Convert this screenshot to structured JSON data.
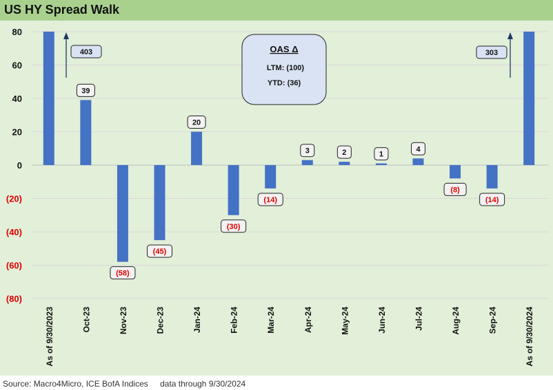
{
  "title": "US HY Spread Walk",
  "source": "Source: Macro4Micro, ICE BofA Indices",
  "data_through": "data through 9/30/2024",
  "colors": {
    "bar": "#4472c4",
    "negative_label": "#e00000",
    "title_bg": "#a9d18e",
    "plot_bg": "#e2efd9",
    "callout_bg": "#dae3f3"
  },
  "callout": {
    "title": "OAS Δ",
    "ltm": "LTM: (100)",
    "ytd": "YTD: (36)"
  },
  "chart_data": {
    "type": "bar",
    "title": "US HY Spread Walk",
    "categories": [
      "As of 9/30/2023",
      "Oct-23",
      "Nov-23",
      "Dec-23",
      "Jan-24",
      "Feb-24",
      "Mar-24",
      "Apr-24",
      "May-24",
      "Jun-24",
      "Jul-24",
      "Aug-24",
      "Sep-24",
      "As of 9/30/2024"
    ],
    "values": [
      403,
      39,
      -58,
      -45,
      20,
      -30,
      -14,
      3,
      2,
      1,
      4,
      -8,
      -14,
      303
    ],
    "data_labels": [
      "403",
      "39",
      "(58)",
      "(45)",
      "20",
      "(30)",
      "(14)",
      "3",
      "2",
      "1",
      "4",
      "(8)",
      "(14)",
      "303"
    ],
    "ylim": [
      -80,
      80
    ],
    "yticks": [
      80,
      60,
      40,
      20,
      0,
      -20,
      -40,
      -60,
      -80
    ],
    "ytick_labels": [
      "80",
      "60",
      "40",
      "20",
      "0",
      "(20)",
      "(40)",
      "(60)",
      "(80)"
    ],
    "grid": true,
    "legend": "none"
  }
}
